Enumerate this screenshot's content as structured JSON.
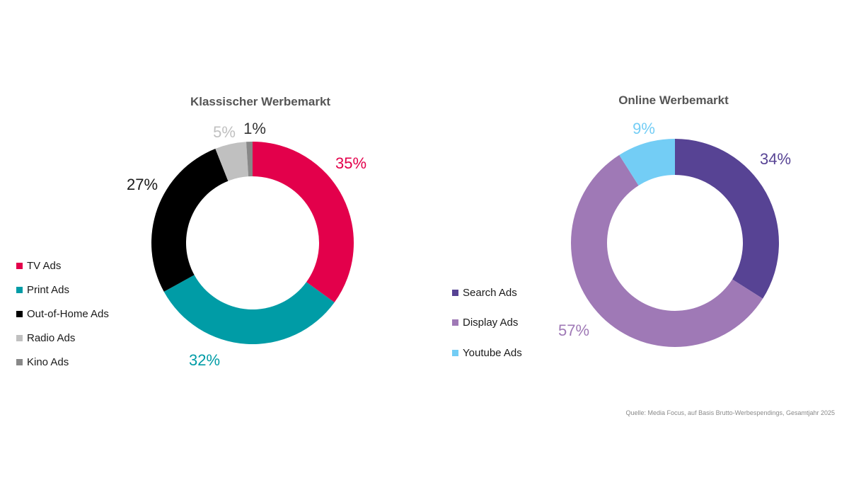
{
  "chart_data": [
    {
      "type": "pie",
      "title": "Klassischer Werbemarkt",
      "categories": [
        "TV Ads",
        "Print Ads",
        "Out-of-Home Ads",
        "Radio Ads",
        "Kino Ads"
      ],
      "values": [
        35,
        32,
        27,
        5,
        1
      ],
      "value_labels": [
        "35%",
        "32%",
        "27%",
        "5%",
        "1%"
      ],
      "colors": [
        "#e3004b",
        "#009ca6",
        "#000000",
        "#c0c0c0",
        "#888888"
      ],
      "label_colors": [
        "#e3004b",
        "#009ca6",
        "#1a1a1a",
        "#c0c0c0",
        "#333333"
      ],
      "donut": true,
      "legend_position": "left"
    },
    {
      "type": "pie",
      "title": "Online Werbemarkt",
      "categories": [
        "Search Ads",
        "Display Ads",
        "Youtube Ads"
      ],
      "values": [
        34,
        57,
        9
      ],
      "value_labels": [
        "34%",
        "57%",
        "9%"
      ],
      "colors": [
        "#574394",
        "#9f79b6",
        "#73cdf5"
      ],
      "label_colors": [
        "#574394",
        "#9f79b6",
        "#73cdf5"
      ],
      "donut": true,
      "legend_position": "left"
    }
  ],
  "source": "Quelle: Media Focus, auf Basis Brutto-Werbespendings, Gesamtjahr 2025"
}
